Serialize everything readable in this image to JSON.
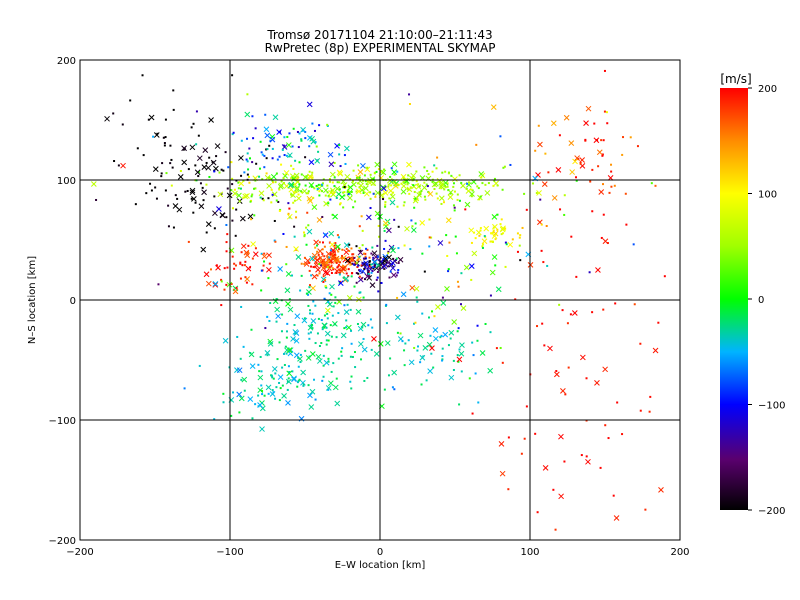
{
  "chart_data": {
    "type": "scatter",
    "title": "Tromsø 20171104 21:10:00–21:11:43",
    "subtitle": "RwPretec (8p) EXPERIMENTAL SKYMAP",
    "xlabel": "E–W location [km]",
    "ylabel": "N–S location [km]",
    "xlim": [
      -200,
      200
    ],
    "ylim": [
      -200,
      200
    ],
    "xticks": [
      -200,
      -100,
      0,
      100,
      200
    ],
    "yticks": [
      -200,
      -100,
      0,
      100,
      200
    ],
    "xtick_labels": [
      "−200",
      "−100",
      "0",
      "100",
      "200"
    ],
    "ytick_labels": [
      "−200",
      "−100",
      "0",
      "100",
      "200"
    ],
    "grid": true,
    "colorbar": {
      "label": "[m/s]",
      "min": -200,
      "max": 200,
      "ticks": [
        200,
        100,
        0,
        -100,
        -200
      ],
      "tick_labels": [
        "200",
        "100",
        "0",
        "−100",
        "−200"
      ]
    },
    "marker_types": [
      "x",
      "dot"
    ],
    "clusters": [
      {
        "cx": -30,
        "cy": 32,
        "sx": 12,
        "sy": 8,
        "n": 160,
        "v": 180,
        "vs": 25
      },
      {
        "cx": -5,
        "cy": 30,
        "sx": 10,
        "sy": 8,
        "n": 110,
        "v": -150,
        "vs": 50
      },
      {
        "cx": -120,
        "cy": 90,
        "sx": 25,
        "sy": 22,
        "n": 80,
        "v": -200,
        "vs": 10
      },
      {
        "cx": -40,
        "cy": 95,
        "sx": 35,
        "sy": 8,
        "n": 200,
        "v": 60,
        "vs": 30
      },
      {
        "cx": 30,
        "cy": 95,
        "sx": 30,
        "sy": 8,
        "n": 160,
        "v": 50,
        "vs": 20
      },
      {
        "cx": 75,
        "cy": 55,
        "sx": 8,
        "sy": 6,
        "n": 40,
        "v": 100,
        "vs": 15
      },
      {
        "cx": -60,
        "cy": 130,
        "sx": 30,
        "sy": 15,
        "n": 90,
        "v": -60,
        "vs": 40
      },
      {
        "cx": -40,
        "cy": -30,
        "sx": 25,
        "sy": 30,
        "n": 220,
        "v": -30,
        "vs": 15
      },
      {
        "cx": 40,
        "cy": -40,
        "sx": 20,
        "sy": 15,
        "n": 60,
        "v": -30,
        "vs": 15
      },
      {
        "cx": -75,
        "cy": -70,
        "sx": 25,
        "sy": 15,
        "n": 70,
        "v": -30,
        "vs": 15
      },
      {
        "cx": -90,
        "cy": 30,
        "sx": 12,
        "sy": 12,
        "n": 50,
        "v": 190,
        "vs": 15
      },
      {
        "cx": 140,
        "cy": 110,
        "sx": 25,
        "sy": 25,
        "n": 60,
        "v": 180,
        "vs": 30
      },
      {
        "cx": 130,
        "cy": -80,
        "sx": 40,
        "sy": 70,
        "n": 80,
        "v": 195,
        "vs": 10
      },
      {
        "cx": 0,
        "cy": 60,
        "sx": 60,
        "sy": 40,
        "n": 240,
        "v": 20,
        "vs": 90
      },
      {
        "cx": -140,
        "cy": 140,
        "sx": 20,
        "sy": 25,
        "n": 40,
        "v": -200,
        "vs": 5
      }
    ]
  }
}
